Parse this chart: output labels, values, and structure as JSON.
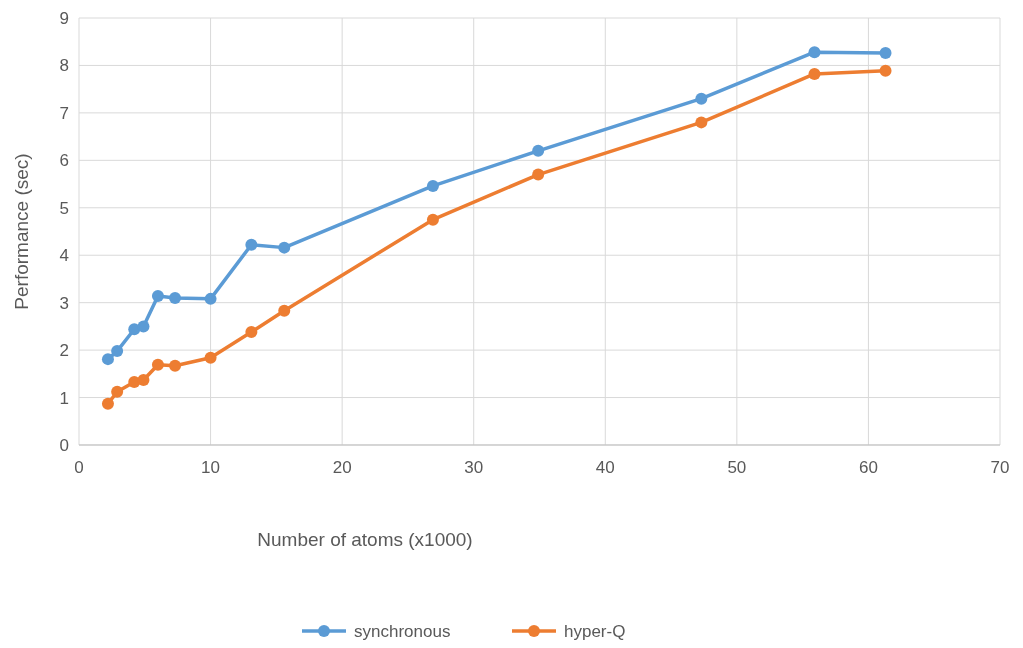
{
  "chart_data": {
    "type": "line",
    "xlabel": "Number of atoms (x1000)",
    "ylabel": "Performance (sec)",
    "x": [
      2.2,
      2.9,
      4.2,
      4.9,
      6.0,
      7.3,
      10.0,
      13.1,
      15.6,
      26.9,
      34.9,
      47.3,
      55.9,
      61.3
    ],
    "series": [
      {
        "name": "synchronous",
        "color": "#5b9bd5",
        "values": [
          1.81,
          1.98,
          2.44,
          2.5,
          3.14,
          3.1,
          3.08,
          4.22,
          4.16,
          5.46,
          6.2,
          7.3,
          8.28,
          8.26
        ]
      },
      {
        "name": "hyper-Q",
        "color": "#ed7d31",
        "values": [
          0.87,
          1.12,
          1.33,
          1.37,
          1.69,
          1.67,
          1.84,
          2.38,
          2.83,
          4.75,
          5.7,
          6.8,
          7.82,
          7.89
        ]
      }
    ],
    "xlim": [
      0,
      70
    ],
    "xticks": [
      0,
      10,
      20,
      30,
      40,
      50,
      60,
      70
    ],
    "ylim": [
      0,
      9
    ],
    "yticks": [
      0,
      1,
      2,
      3,
      4,
      5,
      6,
      7,
      8,
      9
    ],
    "grid": true,
    "legend": "bottom",
    "marker": "circle",
    "line_style": "solid"
  }
}
